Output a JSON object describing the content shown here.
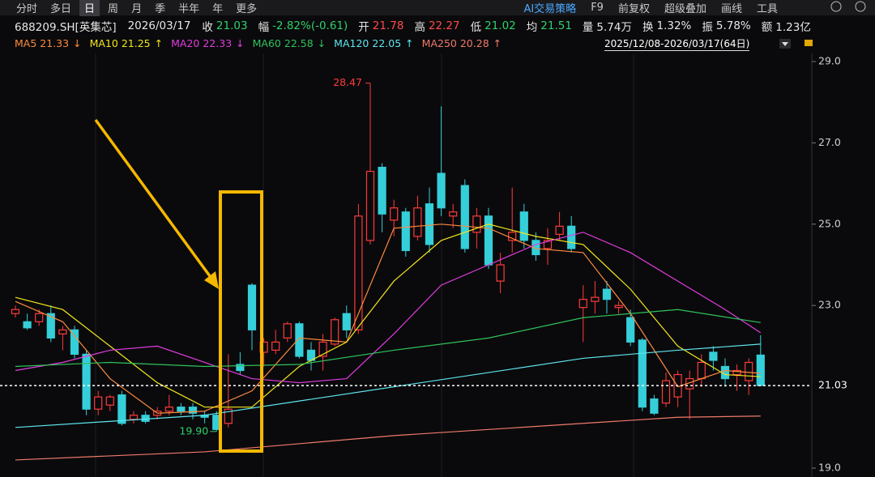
{
  "toolbar": {
    "left": [
      "分时",
      "多日",
      "日",
      "周",
      "月",
      "季",
      "半年",
      "年",
      "更多"
    ],
    "selected": "日",
    "right": [
      "AI交易策略",
      "F9",
      "前复权",
      "超级叠加",
      "画线",
      "工具"
    ]
  },
  "quote": [
    {
      "label": "688209.SH[英集芯]"
    },
    {
      "label": "2026/03/17"
    },
    {
      "label": "收",
      "value": "21.03",
      "color": "#2fd16b"
    },
    {
      "label": "幅",
      "value": "-2.82%(-0.61)",
      "color": "#2fd16b"
    },
    {
      "label": "开",
      "value": "21.78",
      "color": "#ff4a4a"
    },
    {
      "label": "高",
      "value": "22.27",
      "color": "#ff4a4a"
    },
    {
      "label": "低",
      "value": "21.02",
      "color": "#2fd16b"
    },
    {
      "label": "均",
      "value": "21.51",
      "color": "#2fd16b"
    },
    {
      "label": "量",
      "value": "5.74万",
      "color": "#e6e6e6"
    },
    {
      "label": "换",
      "value": "1.32%",
      "color": "#e6e6e6"
    },
    {
      "label": "振",
      "value": "5.78%",
      "color": "#e6e6e6"
    },
    {
      "label": "额",
      "value": "1.23亿",
      "color": "#e6e6e6"
    }
  ],
  "date_range": "2025/12/08-2026/03/17(64日)",
  "chart_data": {
    "type": "candlestick",
    "up_color": "#ff3b3b",
    "down_color": "#35cfd9",
    "open": [
      22.8,
      22.6,
      22.6,
      22.8,
      22.3,
      22.4,
      21.8,
      20.45,
      20.55,
      20.8,
      20.2,
      20.3,
      20.3,
      20.4,
      20.5,
      20.5,
      20.3,
      20.3,
      20.1,
      21.55,
      23.5,
      21.85,
      21.9,
      22.2,
      22.55,
      21.9,
      21.75,
      22.05,
      22.8,
      22.4,
      24.6,
      26.4,
      25.1,
      25.3,
      24.7,
      25.5,
      26.25,
      25.2,
      25.95,
      24.8,
      25.2,
      23.6,
      24.6,
      25.3,
      24.6,
      24.4,
      24.75,
      24.95,
      22.95,
      23.1,
      23.4,
      22.95,
      22.7,
      22.15,
      20.7,
      20.6,
      20.75,
      20.95,
      21.2,
      21.85,
      21.5,
      21.3,
      21.15,
      21.78
    ],
    "high": [
      23.0,
      22.8,
      22.9,
      23.0,
      22.5,
      22.5,
      21.9,
      20.9,
      20.8,
      20.9,
      20.4,
      20.4,
      20.5,
      20.8,
      20.6,
      20.6,
      20.4,
      20.4,
      21.8,
      21.85,
      23.55,
      22.2,
      22.4,
      22.6,
      22.6,
      22.1,
      22.3,
      22.7,
      23.0,
      25.5,
      28.47,
      26.5,
      25.6,
      25.4,
      25.7,
      25.9,
      27.9,
      25.5,
      26.1,
      25.4,
      25.4,
      24.3,
      25.9,
      25.5,
      24.8,
      24.9,
      25.3,
      25.2,
      23.5,
      23.6,
      23.6,
      23.1,
      22.9,
      22.2,
      20.8,
      21.35,
      21.4,
      21.4,
      21.8,
      22.0,
      21.7,
      21.55,
      21.7,
      22.27
    ],
    "low": [
      22.7,
      22.4,
      22.5,
      22.1,
      21.9,
      21.7,
      20.3,
      20.3,
      20.4,
      20.05,
      20.1,
      20.1,
      20.2,
      20.3,
      20.3,
      20.2,
      20.1,
      19.9,
      20.0,
      21.3,
      21.9,
      21.5,
      21.8,
      22.1,
      21.7,
      21.4,
      21.4,
      22.0,
      22.2,
      22.3,
      24.5,
      24.8,
      24.7,
      24.2,
      24.6,
      24.3,
      25.2,
      24.9,
      24.3,
      24.4,
      23.9,
      23.3,
      24.3,
      24.4,
      24.1,
      24.0,
      24.6,
      24.3,
      22.1,
      22.8,
      22.8,
      22.8,
      22.0,
      20.4,
      20.3,
      20.5,
      20.5,
      20.2,
      21.0,
      21.4,
      21.0,
      20.9,
      20.8,
      21.02
    ],
    "close": [
      22.9,
      22.45,
      22.8,
      22.2,
      22.4,
      21.8,
      20.45,
      20.75,
      20.75,
      20.1,
      20.3,
      20.15,
      20.4,
      20.5,
      20.4,
      20.35,
      20.25,
      19.95,
      20.45,
      21.4,
      22.4,
      22.1,
      22.1,
      22.55,
      21.75,
      21.65,
      22.1,
      22.65,
      22.4,
      25.2,
      26.3,
      25.25,
      25.4,
      24.35,
      25.4,
      24.5,
      25.4,
      25.3,
      24.4,
      25.2,
      24.0,
      24.0,
      24.8,
      24.6,
      24.25,
      24.6,
      24.95,
      24.4,
      23.15,
      23.2,
      23.15,
      23.0,
      22.1,
      20.5,
      20.35,
      21.15,
      21.3,
      21.2,
      21.6,
      21.65,
      21.2,
      21.4,
      21.6,
      21.03
    ],
    "series": [
      {
        "name": "MA5",
        "last": 21.33,
        "trend": "↓",
        "color": "#ff8a3d",
        "x": [
          0,
          4,
          8,
          12,
          16,
          20,
          24,
          28,
          32,
          36,
          40,
          44,
          48,
          52,
          56,
          60,
          63
        ],
        "values": [
          23.1,
          22.6,
          21.2,
          20.35,
          20.4,
          20.9,
          22.2,
          22.1,
          24.9,
          25.0,
          24.9,
          24.4,
          24.3,
          22.8,
          21.0,
          21.4,
          21.33
        ]
      },
      {
        "name": "MA10",
        "last": 21.25,
        "trend": "↑",
        "color": "#f2e51c",
        "x": [
          0,
          4,
          8,
          12,
          16,
          20,
          24,
          28,
          32,
          36,
          40,
          44,
          48,
          52,
          56,
          60,
          63
        ],
        "values": [
          23.2,
          22.9,
          22.0,
          21.1,
          20.5,
          20.5,
          21.5,
          22.1,
          23.6,
          24.6,
          25.0,
          24.7,
          24.5,
          23.4,
          22.0,
          21.3,
          21.25
        ]
      },
      {
        "name": "MA20",
        "last": 22.33,
        "trend": "↓",
        "color": "#e23ce0",
        "x": [
          0,
          4,
          8,
          12,
          16,
          20,
          24,
          28,
          32,
          36,
          40,
          44,
          48,
          52,
          56,
          60,
          63
        ],
        "values": [
          21.4,
          21.6,
          21.9,
          22.0,
          21.6,
          21.2,
          21.1,
          21.2,
          22.3,
          23.5,
          24.0,
          24.5,
          24.8,
          24.3,
          23.6,
          22.9,
          22.33
        ]
      },
      {
        "name": "MA60",
        "last": 22.58,
        "trend": "↓",
        "color": "#2fc25b",
        "x": [
          0,
          8,
          16,
          24,
          32,
          40,
          48,
          56,
          63
        ],
        "values": [
          21.5,
          21.6,
          21.5,
          21.55,
          21.9,
          22.2,
          22.7,
          22.9,
          22.58
        ]
      },
      {
        "name": "MA120",
        "last": 22.05,
        "trend": "↑",
        "color": "#5ee6f0",
        "x": [
          0,
          16,
          32,
          48,
          56,
          63
        ],
        "values": [
          20.0,
          20.3,
          21.0,
          21.7,
          21.9,
          22.05
        ]
      },
      {
        "name": "MA250",
        "last": 20.28,
        "trend": "↑",
        "color": "#f07a6a",
        "x": [
          0,
          16,
          32,
          48,
          56,
          63
        ],
        "values": [
          19.2,
          19.4,
          19.8,
          20.1,
          20.25,
          20.28
        ]
      }
    ],
    "ylim": [
      19,
      29
    ],
    "yticks": [
      {
        "value": 19,
        "label": "19.0"
      },
      {
        "value": 23,
        "label": "23.0"
      },
      {
        "value": 25,
        "label": "25.0"
      },
      {
        "value": 27,
        "label": "27.0"
      },
      {
        "value": 29,
        "label": "29.0"
      }
    ],
    "last_price": 21.03,
    "annotations": [
      {
        "index": 30,
        "value": 28.47,
        "label": "28.47",
        "color": "#ff3b3b"
      },
      {
        "index": 17,
        "value": 19.9,
        "label": "19.90",
        "color": "#2fd16b"
      }
    ]
  }
}
